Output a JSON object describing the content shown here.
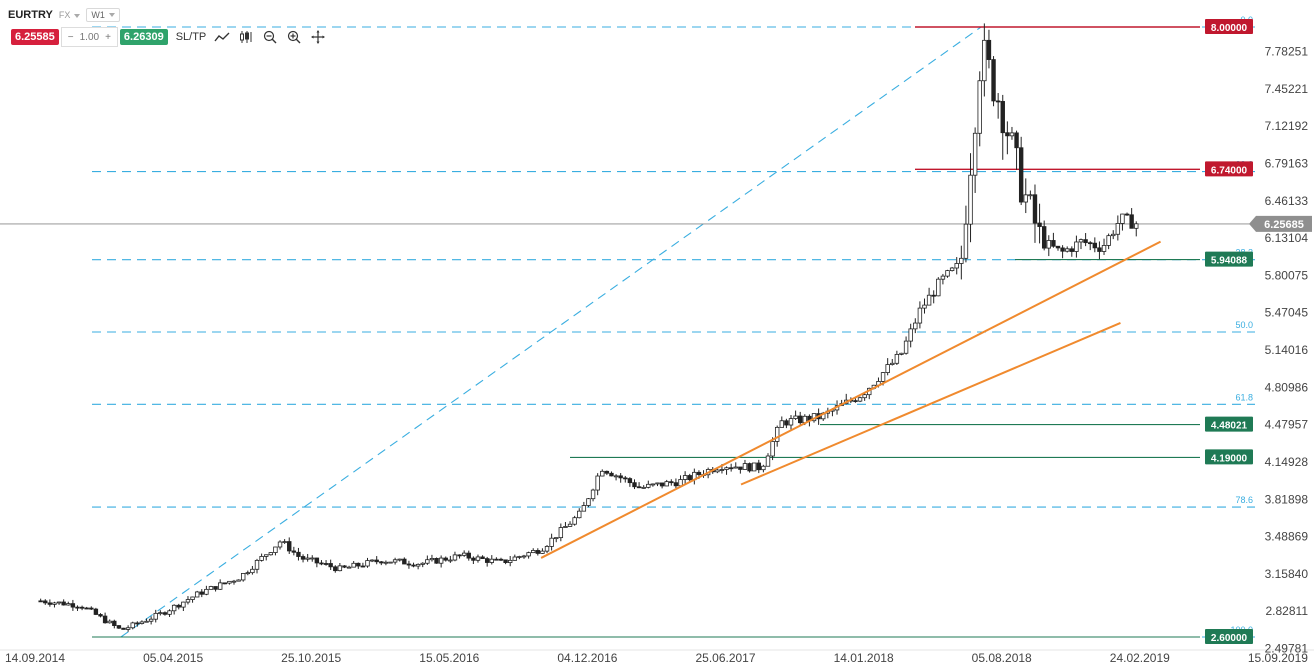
{
  "toolbar": {
    "symbol": "EURTRY",
    "market": "FX",
    "timeframe": "W1",
    "sell_price": "6.25585",
    "quantity": "1.00",
    "buy_price": "6.26309",
    "sltp_label": "SL/TP",
    "icons": [
      "line-chart-icon",
      "candlestick-icon",
      "zoom-out-icon",
      "zoom-in-icon",
      "crosshair-icon"
    ]
  },
  "colors": {
    "fib": "#3aaee0",
    "trend": "#f08a2e",
    "level_green": "#1f7a55",
    "level_red": "#c0182e",
    "current_price": "#888888"
  },
  "chart_data": {
    "type": "candlestick",
    "title": "",
    "x_ticks": [
      "14.09.2014",
      "05.04.2015",
      "25.10.2015",
      "15.05.2016",
      "04.12.2016",
      "25.06.2017",
      "14.01.2018",
      "05.08.2018",
      "24.02.2019",
      "15.09.2019"
    ],
    "y_ticks": [
      "7.78251",
      "7.45221",
      "7.12192",
      "6.79163",
      "6.46133",
      "6.13104",
      "5.80075",
      "5.47045",
      "5.14016",
      "4.80986",
      "4.47957",
      "4.14928",
      "3.81898",
      "3.48869",
      "3.15840",
      "2.82811",
      "2.49781"
    ],
    "ylim": [
      2.49781,
      8.0
    ],
    "current_price": "6.25685",
    "price_levels": [
      {
        "price": 8.0,
        "label": "8.00000",
        "color": "red"
      },
      {
        "price": 6.74,
        "label": "6.74000",
        "color": "red"
      },
      {
        "price": 5.94088,
        "label": "5.94088",
        "color": "green"
      },
      {
        "price": 4.48021,
        "label": "4.48021",
        "color": "green"
      },
      {
        "price": 4.19,
        "label": "4.19000",
        "color": "green"
      },
      {
        "price": 2.6,
        "label": "2.60000",
        "color": "green"
      }
    ],
    "fibonacci": [
      {
        "level": "0.0",
        "price": 8.0
      },
      {
        "level": "23.6",
        "price": 6.72
      },
      {
        "level": "38.2",
        "price": 5.94
      },
      {
        "level": "50.0",
        "price": 5.3
      },
      {
        "level": "61.8",
        "price": 4.66
      },
      {
        "level": "78.6",
        "price": 3.75
      },
      {
        "level": "100.0",
        "price": 2.6
      }
    ],
    "fib_line": {
      "from": {
        "date": "2015-01",
        "price": 2.6
      },
      "to": {
        "date": "2018-08",
        "price": 8.0
      }
    },
    "trendlines": [
      {
        "from": {
          "date": "2016-10",
          "price": 3.3
        },
        "to": {
          "date": "2019-05",
          "price": 6.1
        }
      },
      {
        "from": {
          "date": "2017-08",
          "price": 3.95
        },
        "to": {
          "date": "2019-03",
          "price": 5.38
        }
      }
    ],
    "series_close_path": [
      [
        "2014-09",
        2.92
      ],
      [
        "2014-11",
        2.88
      ],
      [
        "2015-01",
        2.66
      ],
      [
        "2015-03",
        2.8
      ],
      [
        "2015-05",
        2.99
      ],
      [
        "2015-07",
        3.13
      ],
      [
        "2015-09",
        3.45
      ],
      [
        "2015-10",
        3.3
      ],
      [
        "2015-12",
        3.2
      ],
      [
        "2016-02",
        3.28
      ],
      [
        "2016-04",
        3.25
      ],
      [
        "2016-06",
        3.32
      ],
      [
        "2016-08",
        3.26
      ],
      [
        "2016-10",
        3.38
      ],
      [
        "2016-12",
        3.7
      ],
      [
        "2017-01",
        4.1
      ],
      [
        "2017-03",
        3.92
      ],
      [
        "2017-05",
        3.98
      ],
      [
        "2017-07",
        4.12
      ],
      [
        "2017-09",
        4.1
      ],
      [
        "2017-10",
        4.5
      ],
      [
        "2017-12",
        4.55
      ],
      [
        "2018-02",
        4.75
      ],
      [
        "2018-04",
        5.1
      ],
      [
        "2018-05",
        5.5
      ],
      [
        "2018-06",
        5.75
      ],
      [
        "2018-07",
        5.9
      ],
      [
        "2018-08",
        7.8
      ],
      [
        "2018-09",
        7.3
      ],
      [
        "2018-10",
        6.6
      ],
      [
        "2018-11",
        6.1
      ],
      [
        "2018-12",
        6.0
      ],
      [
        "2019-01",
        6.1
      ],
      [
        "2019-02",
        6.05
      ],
      [
        "2019-03",
        6.3
      ],
      [
        "2019-04",
        6.25
      ]
    ]
  }
}
